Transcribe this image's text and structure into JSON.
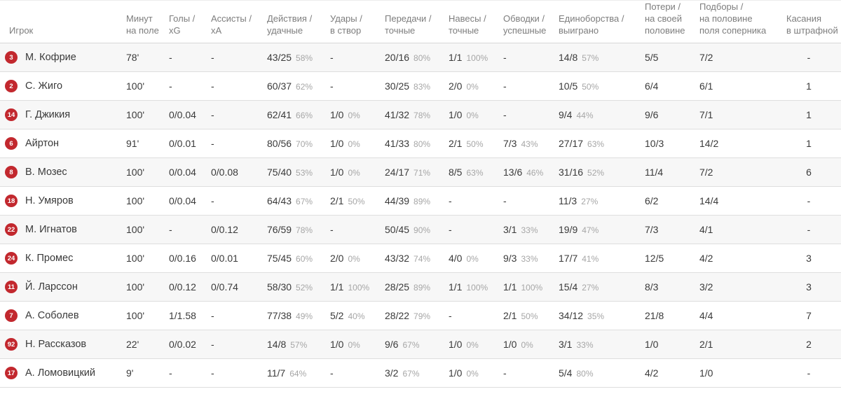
{
  "colors": {
    "badge_red": "#c2282e",
    "row_alt_bg": "#f7f7f7",
    "header_text": "#7d7d7d",
    "value_text": "#3a3a3a",
    "percent_text": "#a6a6a6",
    "divider": "#dedede"
  },
  "table": {
    "columns": [
      {
        "key": "player",
        "label": "Игрок"
      },
      {
        "key": "minutes",
        "label": "Минут\nна поле"
      },
      {
        "key": "goals-xg",
        "label": "Голы /\nxG"
      },
      {
        "key": "assists-xa",
        "label": "Ассисты /\nxA"
      },
      {
        "key": "actions",
        "label": "Действия /\nудачные"
      },
      {
        "key": "shots",
        "label": "Удары /\nв створ"
      },
      {
        "key": "passes",
        "label": "Передачи /\nточные"
      },
      {
        "key": "crosses",
        "label": "Навесы /\nточные"
      },
      {
        "key": "dribbles",
        "label": "Обводки /\nуспешные"
      },
      {
        "key": "duels",
        "label": "Единоборства /\nвыиграно"
      },
      {
        "key": "losses",
        "label": "Потери /\nна своей\nполовине"
      },
      {
        "key": "recoveries",
        "label": "Подборы /\nна половине\nполя соперника"
      },
      {
        "key": "box-touches",
        "label": "Касания\nв штрафной"
      }
    ],
    "rows": [
      {
        "number": "3",
        "name": "М. Кофрие",
        "cells": [
          {
            "v": "78'"
          },
          {
            "v": "-"
          },
          {
            "v": "-"
          },
          {
            "v": "43/25",
            "pct": "58%"
          },
          {
            "v": "-"
          },
          {
            "v": "20/16",
            "pct": "80%"
          },
          {
            "v": "1/1",
            "pct": "100%"
          },
          {
            "v": "-"
          },
          {
            "v": "14/8",
            "pct": "57%"
          },
          {
            "v": "5/5"
          },
          {
            "v": "7/2"
          },
          {
            "v": "-"
          }
        ]
      },
      {
        "number": "2",
        "name": "С. Жиго",
        "cells": [
          {
            "v": "100'"
          },
          {
            "v": "-"
          },
          {
            "v": "-"
          },
          {
            "v": "60/37",
            "pct": "62%"
          },
          {
            "v": "-"
          },
          {
            "v": "30/25",
            "pct": "83%"
          },
          {
            "v": "2/0",
            "pct": "0%"
          },
          {
            "v": "-"
          },
          {
            "v": "10/5",
            "pct": "50%"
          },
          {
            "v": "6/4"
          },
          {
            "v": "6/1"
          },
          {
            "v": "1"
          }
        ]
      },
      {
        "number": "14",
        "name": "Г. Джикия",
        "cells": [
          {
            "v": "100'"
          },
          {
            "v": "0/0.04"
          },
          {
            "v": "-"
          },
          {
            "v": "62/41",
            "pct": "66%"
          },
          {
            "v": "1/0",
            "pct": "0%"
          },
          {
            "v": "41/32",
            "pct": "78%"
          },
          {
            "v": "1/0",
            "pct": "0%"
          },
          {
            "v": "-"
          },
          {
            "v": "9/4",
            "pct": "44%"
          },
          {
            "v": "9/6"
          },
          {
            "v": "7/1"
          },
          {
            "v": "1"
          }
        ]
      },
      {
        "number": "6",
        "name": "Айртон",
        "cells": [
          {
            "v": "91'"
          },
          {
            "v": "0/0.01"
          },
          {
            "v": "-"
          },
          {
            "v": "80/56",
            "pct": "70%"
          },
          {
            "v": "1/0",
            "pct": "0%"
          },
          {
            "v": "41/33",
            "pct": "80%"
          },
          {
            "v": "2/1",
            "pct": "50%"
          },
          {
            "v": "7/3",
            "pct": "43%"
          },
          {
            "v": "27/17",
            "pct": "63%"
          },
          {
            "v": "10/3"
          },
          {
            "v": "14/2"
          },
          {
            "v": "1"
          }
        ]
      },
      {
        "number": "8",
        "name": "В. Мозес",
        "cells": [
          {
            "v": "100'"
          },
          {
            "v": "0/0.04"
          },
          {
            "v": "0/0.08"
          },
          {
            "v": "75/40",
            "pct": "53%"
          },
          {
            "v": "1/0",
            "pct": "0%"
          },
          {
            "v": "24/17",
            "pct": "71%"
          },
          {
            "v": "8/5",
            "pct": "63%"
          },
          {
            "v": "13/6",
            "pct": "46%"
          },
          {
            "v": "31/16",
            "pct": "52%"
          },
          {
            "v": "11/4"
          },
          {
            "v": "7/2"
          },
          {
            "v": "6"
          }
        ]
      },
      {
        "number": "18",
        "name": "Н. Умяров",
        "cells": [
          {
            "v": "100'"
          },
          {
            "v": "0/0.04"
          },
          {
            "v": "-"
          },
          {
            "v": "64/43",
            "pct": "67%"
          },
          {
            "v": "2/1",
            "pct": "50%"
          },
          {
            "v": "44/39",
            "pct": "89%"
          },
          {
            "v": "-"
          },
          {
            "v": "-"
          },
          {
            "v": "11/3",
            "pct": "27%"
          },
          {
            "v": "6/2"
          },
          {
            "v": "14/4"
          },
          {
            "v": "-"
          }
        ]
      },
      {
        "number": "22",
        "name": "М. Игнатов",
        "cells": [
          {
            "v": "100'"
          },
          {
            "v": "-"
          },
          {
            "v": "0/0.12"
          },
          {
            "v": "76/59",
            "pct": "78%"
          },
          {
            "v": "-"
          },
          {
            "v": "50/45",
            "pct": "90%"
          },
          {
            "v": "-"
          },
          {
            "v": "3/1",
            "pct": "33%"
          },
          {
            "v": "19/9",
            "pct": "47%"
          },
          {
            "v": "7/3"
          },
          {
            "v": "4/1"
          },
          {
            "v": "-"
          }
        ]
      },
      {
        "number": "24",
        "name": "К. Промес",
        "cells": [
          {
            "v": "100'"
          },
          {
            "v": "0/0.16"
          },
          {
            "v": "0/0.01"
          },
          {
            "v": "75/45",
            "pct": "60%"
          },
          {
            "v": "2/0",
            "pct": "0%"
          },
          {
            "v": "43/32",
            "pct": "74%"
          },
          {
            "v": "4/0",
            "pct": "0%"
          },
          {
            "v": "9/3",
            "pct": "33%"
          },
          {
            "v": "17/7",
            "pct": "41%"
          },
          {
            "v": "12/5"
          },
          {
            "v": "4/2"
          },
          {
            "v": "3"
          }
        ]
      },
      {
        "number": "11",
        "name": "Й. Ларссон",
        "cells": [
          {
            "v": "100'"
          },
          {
            "v": "0/0.12"
          },
          {
            "v": "0/0.74"
          },
          {
            "v": "58/30",
            "pct": "52%"
          },
          {
            "v": "1/1",
            "pct": "100%"
          },
          {
            "v": "28/25",
            "pct": "89%"
          },
          {
            "v": "1/1",
            "pct": "100%"
          },
          {
            "v": "1/1",
            "pct": "100%"
          },
          {
            "v": "15/4",
            "pct": "27%"
          },
          {
            "v": "8/3"
          },
          {
            "v": "3/2"
          },
          {
            "v": "3"
          }
        ]
      },
      {
        "number": "7",
        "name": "А. Соболев",
        "cells": [
          {
            "v": "100'"
          },
          {
            "v": "1/1.58"
          },
          {
            "v": "-"
          },
          {
            "v": "77/38",
            "pct": "49%"
          },
          {
            "v": "5/2",
            "pct": "40%"
          },
          {
            "v": "28/22",
            "pct": "79%"
          },
          {
            "v": "-"
          },
          {
            "v": "2/1",
            "pct": "50%"
          },
          {
            "v": "34/12",
            "pct": "35%"
          },
          {
            "v": "21/8"
          },
          {
            "v": "4/4"
          },
          {
            "v": "7"
          }
        ]
      },
      {
        "number": "92",
        "name": "Н. Рассказов",
        "cells": [
          {
            "v": "22'"
          },
          {
            "v": "0/0.02"
          },
          {
            "v": "-"
          },
          {
            "v": "14/8",
            "pct": "57%"
          },
          {
            "v": "1/0",
            "pct": "0%"
          },
          {
            "v": "9/6",
            "pct": "67%"
          },
          {
            "v": "1/0",
            "pct": "0%"
          },
          {
            "v": "1/0",
            "pct": "0%"
          },
          {
            "v": "3/1",
            "pct": "33%"
          },
          {
            "v": "1/0"
          },
          {
            "v": "2/1"
          },
          {
            "v": "2"
          }
        ]
      },
      {
        "number": "17",
        "name": "А. Ломовицкий",
        "cells": [
          {
            "v": "9'"
          },
          {
            "v": "-"
          },
          {
            "v": "-"
          },
          {
            "v": "11/7",
            "pct": "64%"
          },
          {
            "v": "-"
          },
          {
            "v": "3/2",
            "pct": "67%"
          },
          {
            "v": "1/0",
            "pct": "0%"
          },
          {
            "v": "-"
          },
          {
            "v": "5/4",
            "pct": "80%"
          },
          {
            "v": "4/2"
          },
          {
            "v": "1/0"
          },
          {
            "v": "-"
          }
        ]
      }
    ]
  }
}
